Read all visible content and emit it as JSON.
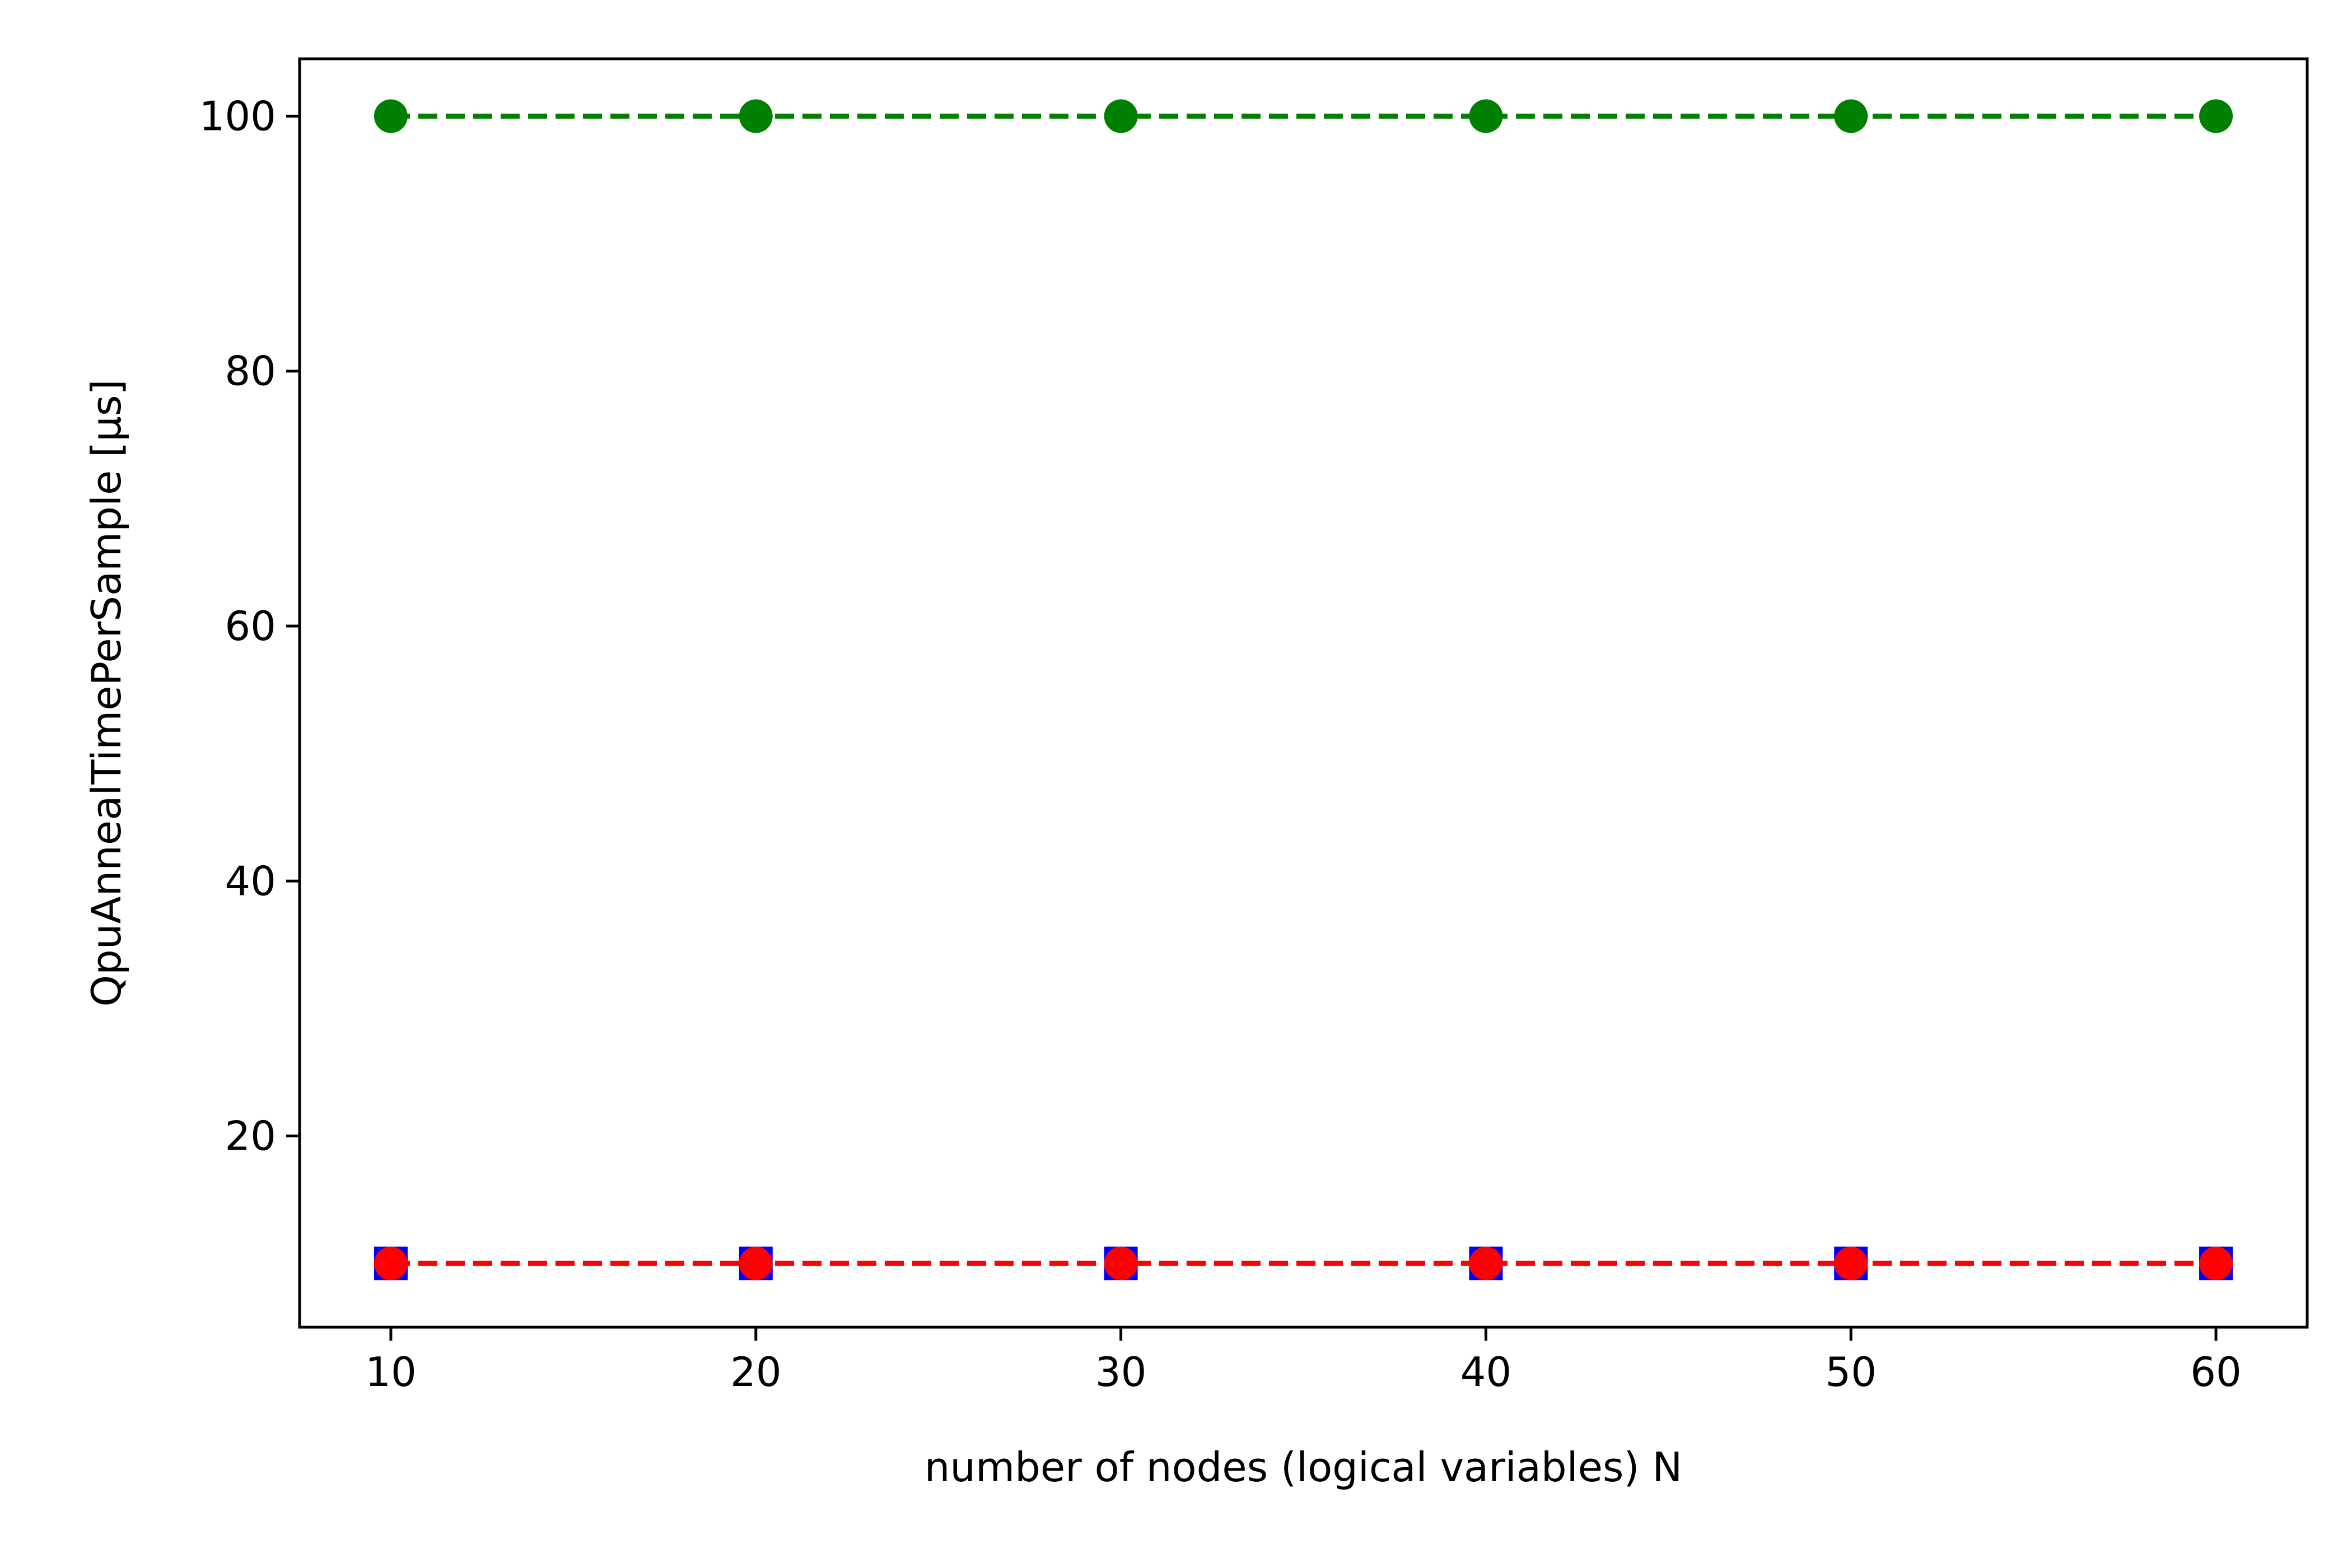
{
  "chart_data": {
    "type": "line",
    "title": "",
    "xlabel": "number of nodes (logical variables) N",
    "ylabel": "QpuAnnealTimePerSample [μs]",
    "xlim": [
      7.5,
      62.5
    ],
    "ylim": [
      5,
      104.5
    ],
    "x_ticks": [
      10,
      20,
      30,
      40,
      50,
      60
    ],
    "y_ticks": [
      20,
      40,
      60,
      80,
      100
    ],
    "grid": false,
    "legend": "none",
    "x": [
      10,
      20,
      30,
      40,
      50,
      60
    ],
    "series": [
      {
        "values": [
          100,
          100,
          100,
          100,
          100,
          100
        ],
        "color": "#008000",
        "marker": "circle",
        "linestyle": "dashed"
      },
      {
        "values": [
          10,
          10,
          10,
          10,
          10,
          10
        ],
        "color": "#0000ff",
        "marker": "square",
        "linestyle": "dashed"
      },
      {
        "values": [
          10,
          10,
          10,
          10,
          10,
          10
        ],
        "color": "#ff0000",
        "marker": "circle",
        "linestyle": "dashed"
      }
    ]
  }
}
